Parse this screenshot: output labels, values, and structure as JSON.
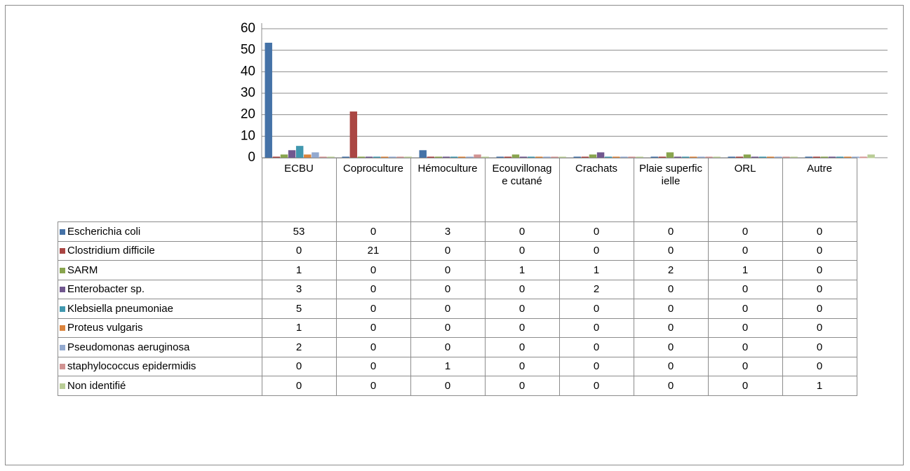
{
  "chart_data": {
    "type": "bar",
    "categories": [
      "ECBU",
      "Coproculture",
      "Hémoculture",
      "Ecouvillonage cutané",
      "Crachats",
      "Plaie superficielle",
      "ORL",
      "Autre"
    ],
    "series": [
      {
        "name": "Escherichia coli",
        "color": "#4572a7",
        "values": [
          53,
          0,
          3,
          0,
          0,
          0,
          0,
          0
        ]
      },
      {
        "name": "Clostridium difficile",
        "color": "#aa4643",
        "values": [
          0,
          21,
          0,
          0,
          0,
          0,
          0,
          0
        ]
      },
      {
        "name": "SARM",
        "color": "#89a54e",
        "values": [
          1,
          0,
          0,
          1,
          1,
          2,
          1,
          0
        ]
      },
      {
        "name": "Enterobacter sp.",
        "color": "#71588f",
        "values": [
          3,
          0,
          0,
          0,
          2,
          0,
          0,
          0
        ]
      },
      {
        "name": "Klebsiella pneumoniae",
        "color": "#4198af",
        "values": [
          5,
          0,
          0,
          0,
          0,
          0,
          0,
          0
        ]
      },
      {
        "name": "Proteus vulgaris",
        "color": "#db843d",
        "values": [
          1,
          0,
          0,
          0,
          0,
          0,
          0,
          0
        ]
      },
      {
        "name": "Pseudomonas aeruginosa",
        "color": "#93a9cf",
        "values": [
          2,
          0,
          0,
          0,
          0,
          0,
          0,
          0
        ]
      },
      {
        "name": "staphylococcus epidermidis",
        "color": "#d19392",
        "values": [
          0,
          0,
          1,
          0,
          0,
          0,
          0,
          0
        ]
      },
      {
        "name": "Non identifié",
        "color": "#b9cd96",
        "values": [
          0,
          0,
          0,
          0,
          0,
          0,
          0,
          1
        ]
      }
    ],
    "ylim": [
      0,
      60
    ],
    "yticks": [
      0,
      10,
      20,
      30,
      40,
      50,
      60
    ],
    "grid": true
  }
}
